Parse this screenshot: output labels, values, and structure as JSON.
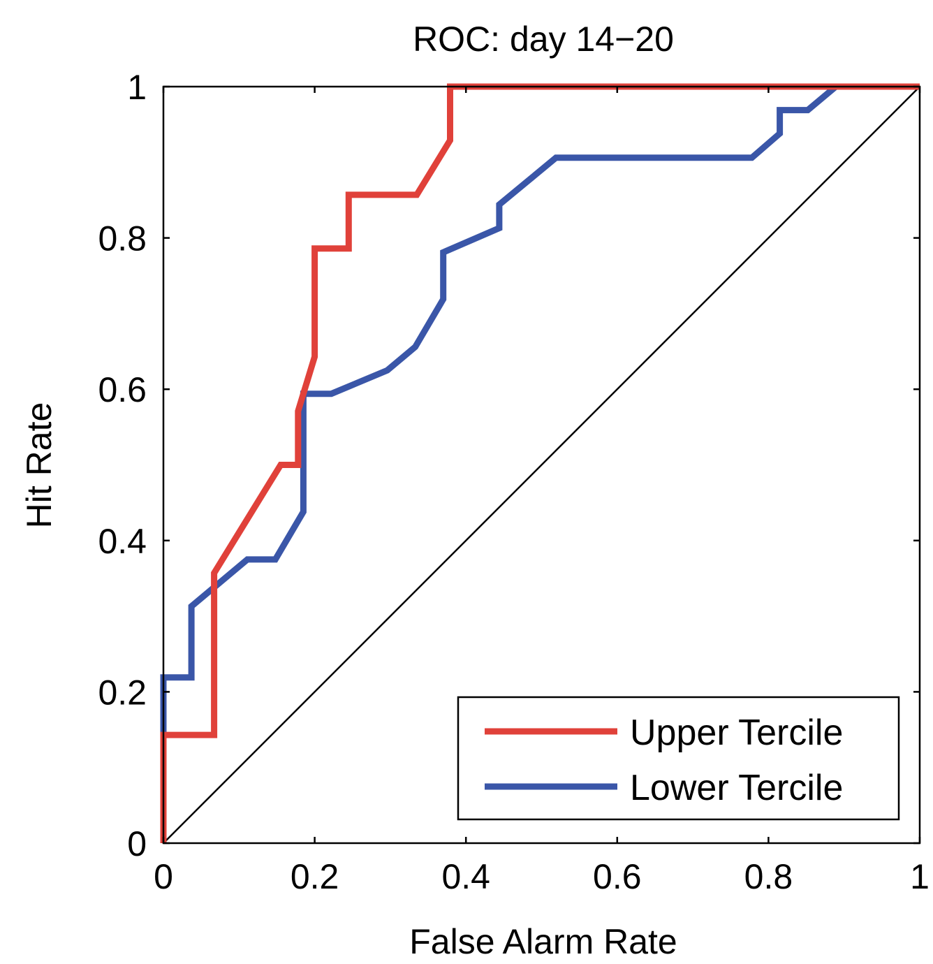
{
  "chart_data": {
    "type": "line",
    "title": "ROC: day 14−20",
    "xlabel": "False Alarm Rate",
    "ylabel": "Hit Rate",
    "xlim": [
      0,
      1
    ],
    "ylim": [
      0,
      1
    ],
    "xticks": [
      0,
      0.2,
      0.4,
      0.6,
      0.8,
      1
    ],
    "yticks": [
      0,
      0.2,
      0.4,
      0.6,
      0.8,
      1
    ],
    "xtick_labels": [
      "0",
      "0.2",
      "0.4",
      "0.6",
      "0.8",
      "1"
    ],
    "ytick_labels": [
      "0",
      "0.2",
      "0.4",
      "0.6",
      "0.8",
      "1"
    ],
    "grid": false,
    "legend_position": "bottom-right",
    "series": [
      {
        "name": "Upper Tercile",
        "color": "#e0413a",
        "x": [
          0,
          0,
          0.067,
          0.067,
          0.155,
          0.178,
          0.178,
          0.2,
          0.2,
          0.245,
          0.245,
          0.335,
          0.379,
          0.379,
          1
        ],
        "y": [
          0,
          0.143,
          0.143,
          0.357,
          0.5,
          0.5,
          0.571,
          0.643,
          0.786,
          0.786,
          0.857,
          0.857,
          0.929,
          1,
          1
        ]
      },
      {
        "name": "Lower Tercile",
        "color": "#3a56a8",
        "x": [
          0,
          0,
          0.037,
          0.037,
          0.111,
          0.148,
          0.185,
          0.185,
          0.222,
          0.296,
          0.333,
          0.37,
          0.37,
          0.444,
          0.444,
          0.519,
          0.778,
          0.815,
          0.815,
          0.852,
          0.889,
          1
        ],
        "y": [
          0,
          0.219,
          0.219,
          0.313,
          0.375,
          0.375,
          0.438,
          0.594,
          0.594,
          0.625,
          0.656,
          0.719,
          0.781,
          0.813,
          0.844,
          0.906,
          0.906,
          0.938,
          0.969,
          0.969,
          1,
          1
        ]
      },
      {
        "name": "",
        "color": "#000000",
        "x": [
          0,
          1
        ],
        "y": [
          0,
          1
        ]
      }
    ]
  }
}
